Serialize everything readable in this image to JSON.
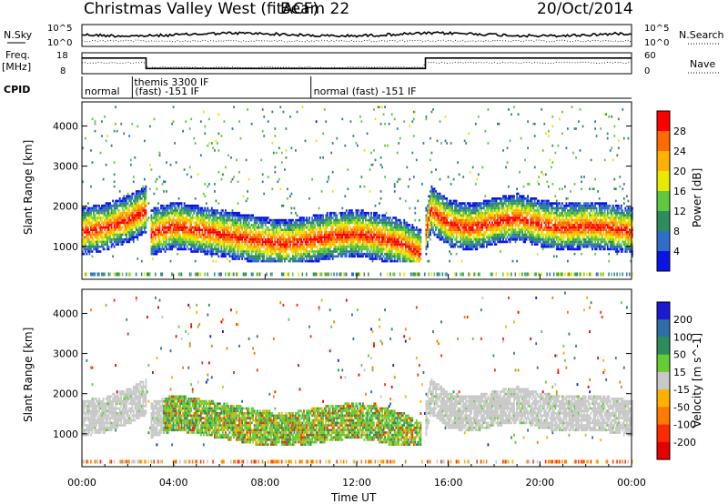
{
  "header": {
    "title": "Christmas Valley West (fitACF)",
    "beam": "Beam 22",
    "date": "20/Oct/2014"
  },
  "status_panels": {
    "nsky_label": "N.Sky",
    "nsky_ticks": [
      "10^5",
      "10^0"
    ],
    "nsearch_label": "N.Search",
    "nsearch_ticks": [
      "10^5",
      "10^0"
    ],
    "freq_label_line1": "Freq.",
    "freq_label_line2": "[MHz]",
    "freq_ticks": [
      "18",
      "8"
    ],
    "nave_label": "Nave",
    "nave_ticks": [
      "60",
      "0"
    ],
    "cpid_label": "CPID",
    "cpid_segments": [
      {
        "start_hour": 0,
        "end_hour": 2.2,
        "label_line1": "",
        "label_line2": "normal"
      },
      {
        "start_hour": 2.2,
        "end_hour": 10.0,
        "label_line1": "themis 3300 IF",
        "label_line2": "(fast) -151 IF"
      },
      {
        "start_hour": 10.0,
        "end_hour": 24,
        "label_line1": "",
        "label_line2": "normal (fast) -151 IF"
      }
    ],
    "freq_series_mhz": [
      [
        0,
        15.5
      ],
      [
        2.8,
        15.5
      ],
      [
        2.8,
        10.5
      ],
      [
        15.0,
        10.5
      ],
      [
        15.0,
        15.5
      ],
      [
        24,
        15.5
      ]
    ]
  },
  "chart_data": [
    {
      "type": "heatmap",
      "panel": "power",
      "title": "",
      "xlabel": "",
      "ylabel": "Slant Range [km]",
      "xlim": [
        0,
        24
      ],
      "ylim": [
        180,
        4600
      ],
      "yticks": [
        1000,
        2000,
        3000,
        4000
      ],
      "colorbar": {
        "label": "Power [dB]",
        "ticks": [
          "28",
          "24",
          "20",
          "16",
          "12",
          "8",
          "4"
        ],
        "colors": [
          "#ff0000",
          "#ff6a00",
          "#ffb000",
          "#e8e800",
          "#5fc83c",
          "#2f8c5a",
          "#2f6ec8",
          "#0a14e6"
        ]
      },
      "ridge_km": [
        [
          0,
          1350
        ],
        [
          1,
          1450
        ],
        [
          2,
          1650
        ],
        [
          2.8,
          1900
        ],
        [
          2.9,
          1300
        ],
        [
          4,
          1500
        ],
        [
          5,
          1400
        ],
        [
          6,
          1300
        ],
        [
          7,
          1200
        ],
        [
          8,
          1100
        ],
        [
          9,
          1050
        ],
        [
          10,
          1150
        ],
        [
          11,
          1250
        ],
        [
          12,
          1300
        ],
        [
          13,
          1200
        ],
        [
          14,
          1050
        ],
        [
          14.8,
          800
        ],
        [
          15.2,
          1900
        ],
        [
          16,
          1550
        ],
        [
          17,
          1450
        ],
        [
          18,
          1600
        ],
        [
          19,
          1700
        ],
        [
          20,
          1550
        ],
        [
          21,
          1450
        ],
        [
          22,
          1500
        ],
        [
          23,
          1450
        ],
        [
          24,
          1350
        ]
      ]
    },
    {
      "type": "heatmap",
      "panel": "velocity",
      "title": "",
      "xlabel": "Time UT",
      "ylabel": "Slant Range [km]",
      "xlim": [
        0,
        24
      ],
      "ylim": [
        180,
        4600
      ],
      "yticks": [
        1000,
        2000,
        3000,
        4000
      ],
      "xticks": [
        "00:00",
        "04:00",
        "08:00",
        "12:00",
        "16:00",
        "20:00",
        "00:00"
      ],
      "colorbar": {
        "label": "Velocity [m s^-1]",
        "ticks": [
          "200",
          "100",
          "50",
          "15",
          "-15",
          "-50",
          "-100",
          "-200"
        ],
        "colors": [
          "#1a1ad2",
          "#2e6ea8",
          "#2e8c5a",
          "#66cc33",
          "#c8c8c8",
          "#ffb000",
          "#ff7a00",
          "#ff2a00",
          "#e60000"
        ]
      }
    }
  ]
}
